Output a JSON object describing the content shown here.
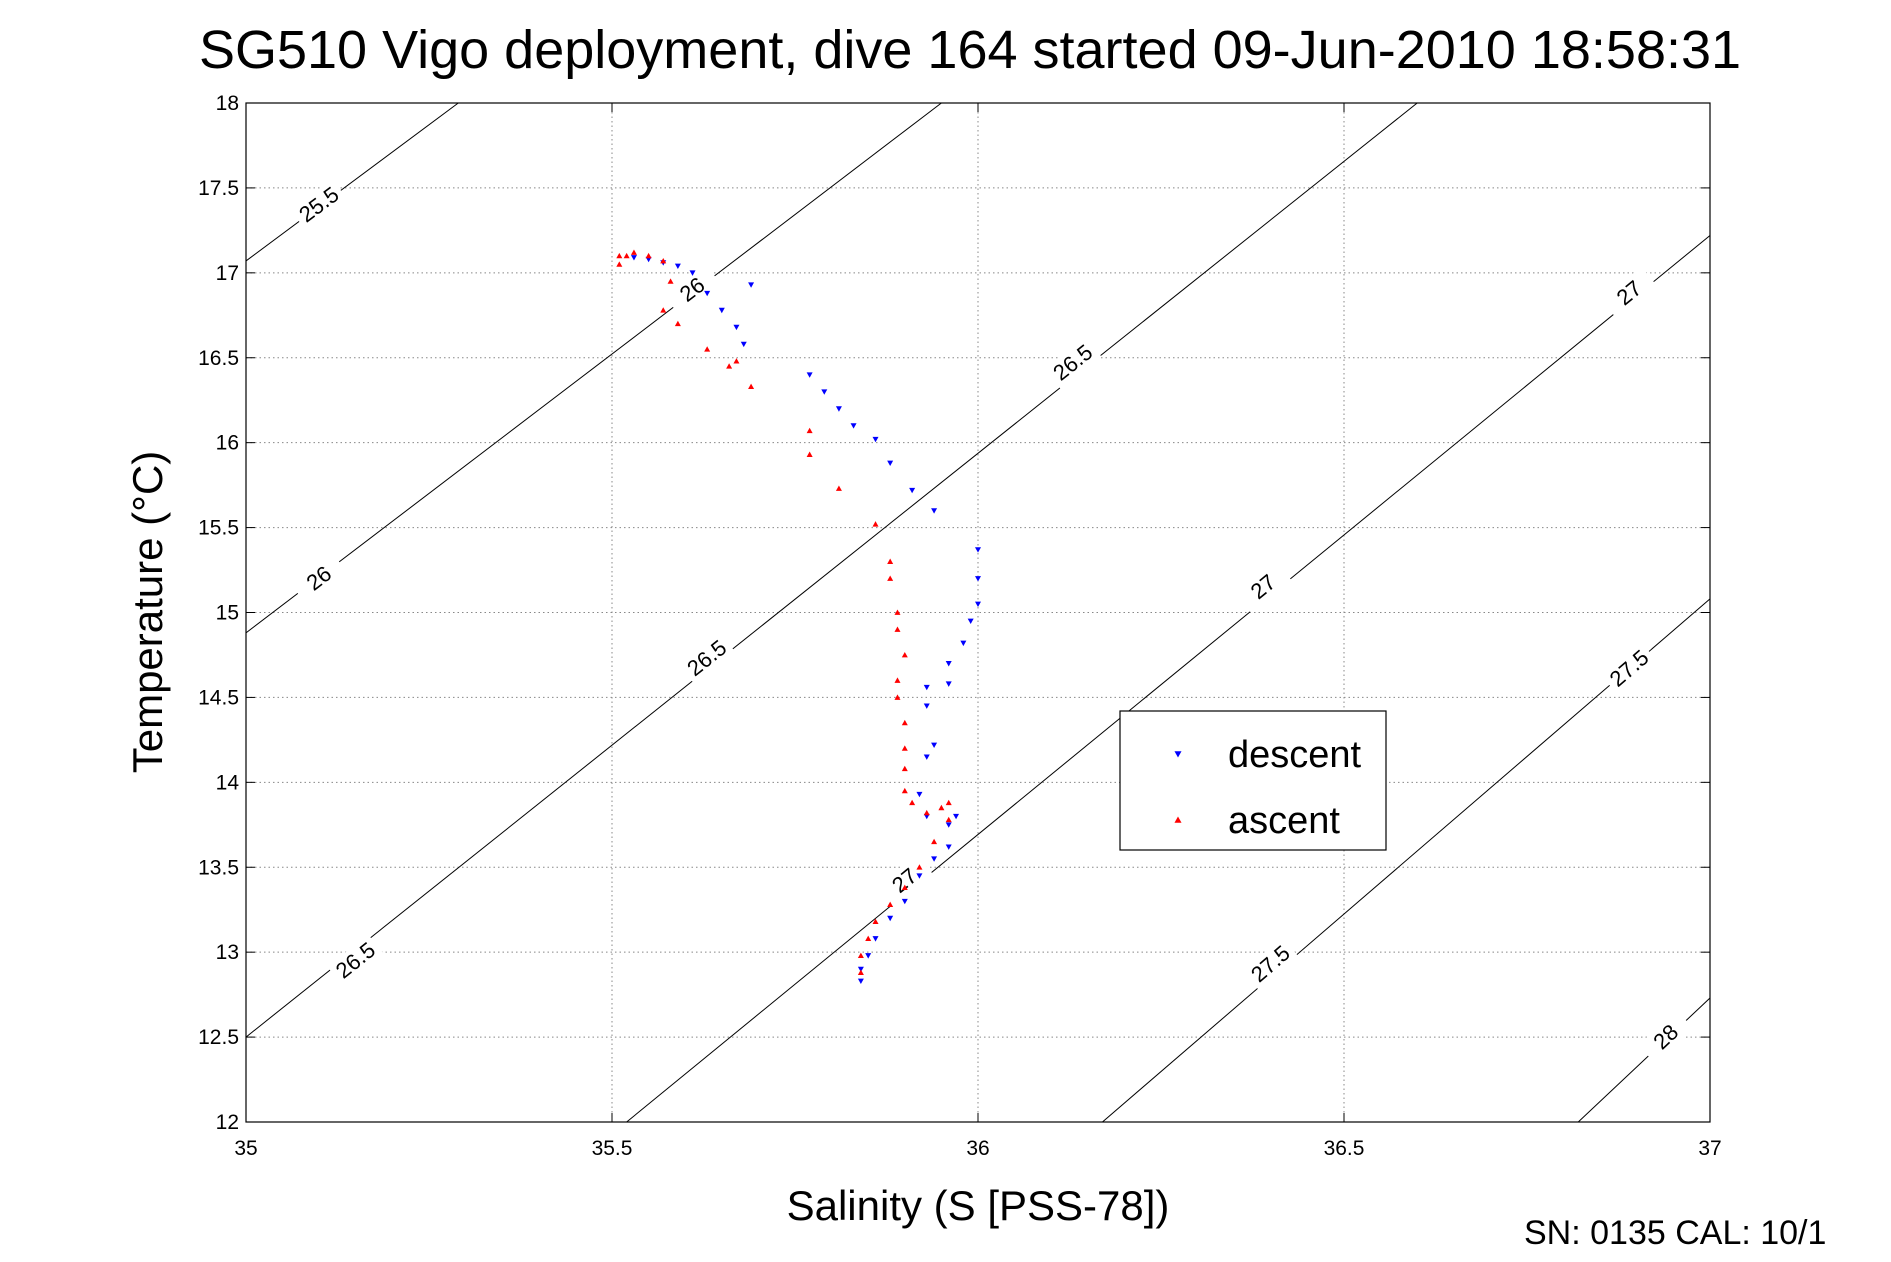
{
  "chart_data": {
    "type": "scatter",
    "title": "SG510 Vigo deployment, dive 164 started 09-Jun-2010 18:58:31",
    "xlabel": "Salinity (S [PSS-78])",
    "ylabel": "Temperature (°C)",
    "xlim": [
      35,
      37
    ],
    "ylim": [
      12,
      18
    ],
    "xticks": [
      35,
      35.5,
      36,
      36.5,
      37
    ],
    "xtick_labels": [
      "35",
      "35.5",
      "36",
      "36.5",
      "37"
    ],
    "yticks": [
      12,
      12.5,
      13,
      13.5,
      14,
      14.5,
      15,
      15.5,
      16,
      16.5,
      17,
      17.5,
      18
    ],
    "ytick_labels": [
      "12",
      "12.5",
      "13",
      "13.5",
      "14",
      "14.5",
      "15",
      "15.5",
      "16",
      "16.5",
      "17",
      "17.5",
      "18"
    ],
    "grid": true,
    "legend_position": "center-right",
    "footer_text": "SN: 0135  CAL: 10/1",
    "density_contours": [
      {
        "level": "25.5",
        "points": [
          [
            35.0,
            17.07
          ],
          [
            35.29,
            18.0
          ]
        ],
        "labels": [
          {
            "text": "25.5",
            "at": [
              35.1,
              17.4
            ]
          }
        ]
      },
      {
        "level": "26",
        "points": [
          [
            35.0,
            14.88
          ],
          [
            35.95,
            18.0
          ]
        ],
        "labels": [
          {
            "text": "26",
            "at": [
              35.1,
              15.2
            ]
          },
          {
            "text": "26",
            "at": [
              35.61,
              16.9
            ]
          }
        ]
      },
      {
        "level": "26.5",
        "points": [
          [
            35.0,
            12.5
          ],
          [
            36.6,
            18.0
          ]
        ],
        "labels": [
          {
            "text": "26.5",
            "at": [
              35.15,
              12.95
            ]
          },
          {
            "text": "26.5",
            "at": [
              35.63,
              14.73
            ]
          },
          {
            "text": "26.5",
            "at": [
              36.13,
              16.47
            ]
          }
        ]
      },
      {
        "level": "27",
        "points": [
          [
            35.52,
            12.0
          ],
          [
            37.0,
            17.22
          ]
        ],
        "labels": [
          {
            "text": "27",
            "at": [
              35.9,
              13.42
            ]
          },
          {
            "text": "27",
            "at": [
              36.39,
              15.15
            ]
          },
          {
            "text": "27",
            "at": [
              36.89,
              16.88
            ]
          }
        ]
      },
      {
        "level": "27.5",
        "points": [
          [
            36.17,
            12.0
          ],
          [
            37.0,
            15.08
          ]
        ],
        "labels": [
          {
            "text": "27.5",
            "at": [
              36.4,
              12.93
            ]
          },
          {
            "text": "27.5",
            "at": [
              36.89,
              14.67
            ]
          }
        ]
      },
      {
        "level": "28",
        "points": [
          [
            36.82,
            12.0
          ],
          [
            37.0,
            12.73
          ]
        ],
        "labels": [
          {
            "text": "28",
            "at": [
              36.94,
              12.5
            ]
          }
        ]
      }
    ],
    "series": [
      {
        "name": "descent",
        "color": "#0000ff",
        "marker": "triangle-down",
        "points": [
          [
            35.53,
            17.09
          ],
          [
            35.55,
            17.08
          ],
          [
            35.57,
            17.06
          ],
          [
            35.59,
            17.04
          ],
          [
            35.61,
            17.0
          ],
          [
            35.63,
            16.88
          ],
          [
            35.65,
            16.78
          ],
          [
            35.67,
            16.68
          ],
          [
            35.68,
            16.58
          ],
          [
            35.69,
            16.93
          ],
          [
            35.77,
            16.4
          ],
          [
            35.79,
            16.3
          ],
          [
            35.81,
            16.2
          ],
          [
            35.83,
            16.1
          ],
          [
            35.86,
            16.02
          ],
          [
            35.88,
            15.88
          ],
          [
            35.91,
            15.72
          ],
          [
            35.94,
            15.6
          ],
          [
            36.0,
            15.37
          ],
          [
            36.0,
            15.2
          ],
          [
            36.0,
            15.05
          ],
          [
            35.99,
            14.95
          ],
          [
            35.98,
            14.82
          ],
          [
            35.96,
            14.7
          ],
          [
            35.96,
            14.58
          ],
          [
            35.93,
            14.56
          ],
          [
            35.93,
            14.45
          ],
          [
            35.94,
            14.22
          ],
          [
            35.93,
            14.15
          ],
          [
            35.92,
            13.93
          ],
          [
            35.93,
            13.8
          ],
          [
            35.96,
            13.75
          ],
          [
            35.97,
            13.8
          ],
          [
            35.96,
            13.62
          ],
          [
            35.94,
            13.55
          ],
          [
            35.92,
            13.45
          ],
          [
            35.9,
            13.3
          ],
          [
            35.88,
            13.2
          ],
          [
            35.86,
            13.08
          ],
          [
            35.85,
            12.98
          ],
          [
            35.84,
            12.9
          ],
          [
            35.84,
            12.83
          ]
        ]
      },
      {
        "name": "ascent",
        "color": "#ff0000",
        "marker": "triangle-up",
        "points": [
          [
            35.51,
            17.1
          ],
          [
            35.51,
            17.05
          ],
          [
            35.52,
            17.1
          ],
          [
            35.53,
            17.12
          ],
          [
            35.55,
            17.1
          ],
          [
            35.57,
            17.07
          ],
          [
            35.58,
            16.95
          ],
          [
            35.57,
            16.78
          ],
          [
            35.59,
            16.7
          ],
          [
            35.63,
            16.55
          ],
          [
            35.66,
            16.45
          ],
          [
            35.67,
            16.48
          ],
          [
            35.69,
            16.33
          ],
          [
            35.77,
            16.07
          ],
          [
            35.77,
            15.93
          ],
          [
            35.81,
            15.73
          ],
          [
            35.86,
            15.52
          ],
          [
            35.88,
            15.3
          ],
          [
            35.88,
            15.2
          ],
          [
            35.89,
            15.0
          ],
          [
            35.89,
            14.9
          ],
          [
            35.9,
            14.75
          ],
          [
            35.89,
            14.6
          ],
          [
            35.89,
            14.5
          ],
          [
            35.9,
            14.35
          ],
          [
            35.9,
            14.2
          ],
          [
            35.9,
            14.08
          ],
          [
            35.9,
            13.95
          ],
          [
            35.91,
            13.88
          ],
          [
            35.93,
            13.82
          ],
          [
            35.95,
            13.85
          ],
          [
            35.96,
            13.88
          ],
          [
            35.96,
            13.78
          ],
          [
            35.94,
            13.65
          ],
          [
            35.92,
            13.5
          ],
          [
            35.9,
            13.38
          ],
          [
            35.88,
            13.28
          ],
          [
            35.86,
            13.18
          ],
          [
            35.85,
            13.08
          ],
          [
            35.84,
            12.98
          ],
          [
            35.84,
            12.88
          ]
        ]
      }
    ]
  }
}
